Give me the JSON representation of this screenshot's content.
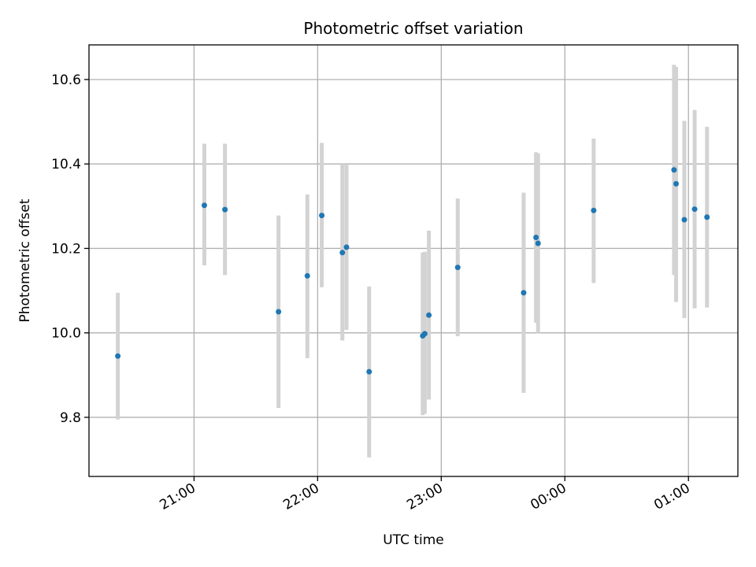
{
  "chart_data": {
    "type": "scatter",
    "title": "Photometric offset variation",
    "xlabel": "UTC time",
    "ylabel": "Photometric offset",
    "x_tick_labels": [
      "21:00",
      "22:00",
      "23:00",
      "00:00",
      "01:00"
    ],
    "x_tick_hours": [
      21,
      22,
      23,
      24,
      25
    ],
    "xlim_hours": [
      20.15,
      25.4
    ],
    "ylim": [
      9.66,
      10.682
    ],
    "y_ticks": [
      9.8,
      10.0,
      10.2,
      10.4,
      10.6
    ],
    "y_tick_labels": [
      "9.8",
      "10.0",
      "10.2",
      "10.4",
      "10.6"
    ],
    "grid": true,
    "x_axis_format": "time (hours past midnight beyond 24)",
    "series": [
      {
        "marker_color": "#1f77b4",
        "errorbar_color": "#d3d3d3",
        "points": [
          {
            "x": "20:23",
            "y": 9.945,
            "lo": 9.795,
            "hi": 10.095
          },
          {
            "x": "21:05",
            "y": 10.302,
            "lo": 10.16,
            "hi": 10.448
          },
          {
            "x": "21:15",
            "y": 10.292,
            "lo": 10.137,
            "hi": 10.448
          },
          {
            "x": "21:41",
            "y": 10.05,
            "lo": 9.822,
            "hi": 10.278
          },
          {
            "x": "21:55",
            "y": 10.135,
            "lo": 9.94,
            "hi": 10.328
          },
          {
            "x": "22:02",
            "y": 10.278,
            "lo": 10.108,
            "hi": 10.45
          },
          {
            "x": "22:12",
            "y": 10.19,
            "lo": 9.982,
            "hi": 10.4
          },
          {
            "x": "22:14",
            "y": 10.203,
            "lo": 10.007,
            "hi": 10.398
          },
          {
            "x": "22:25",
            "y": 9.908,
            "lo": 9.705,
            "hi": 10.11
          },
          {
            "x": "22:51",
            "y": 9.993,
            "lo": 9.805,
            "hi": 10.19
          },
          {
            "x": "22:52",
            "y": 9.998,
            "lo": 9.808,
            "hi": 10.192
          },
          {
            "x": "22:54",
            "y": 10.042,
            "lo": 9.842,
            "hi": 10.242
          },
          {
            "x": "23:08",
            "y": 10.155,
            "lo": 9.992,
            "hi": 10.318
          },
          {
            "x": "23:40",
            "y": 10.095,
            "lo": 9.858,
            "hi": 10.332
          },
          {
            "x": "23:46",
            "y": 10.226,
            "lo": 10.024,
            "hi": 10.428
          },
          {
            "x": "23:47",
            "y": 10.212,
            "lo": 10.0,
            "hi": 10.425
          },
          {
            "x": "00:14",
            "y": 10.29,
            "lo": 10.118,
            "hi": 10.46
          },
          {
            "x": "00:53",
            "y": 10.386,
            "lo": 10.137,
            "hi": 10.635
          },
          {
            "x": "00:54",
            "y": 10.353,
            "lo": 10.073,
            "hi": 10.63
          },
          {
            "x": "00:58",
            "y": 10.268,
            "lo": 10.035,
            "hi": 10.502
          },
          {
            "x": "01:03",
            "y": 10.293,
            "lo": 10.058,
            "hi": 10.528
          },
          {
            "x": "01:09",
            "y": 10.274,
            "lo": 10.06,
            "hi": 10.488
          }
        ]
      }
    ]
  }
}
